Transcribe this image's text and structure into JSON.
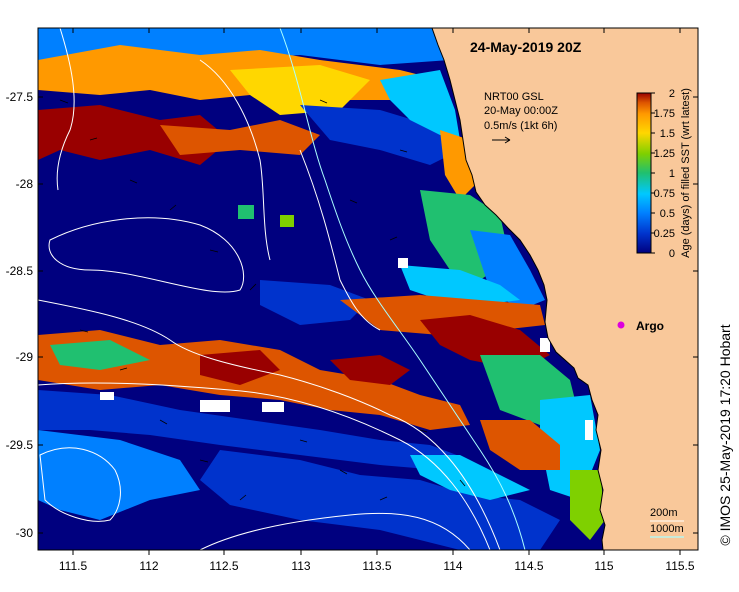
{
  "map": {
    "title": "24-May-2019 20Z",
    "credit": "© IMOS 25-May-2019 17:20 Hobart",
    "vector_label": {
      "line1": "NRT00 GSL",
      "line2": "20-May 00:00Z",
      "line3": "0.5m/s (1kt 6h)"
    },
    "argo_label": "Argo",
    "contour_legend": {
      "shallow": "200m",
      "deep": "1000m"
    },
    "colorbar": {
      "label": "Age (days) of filled SST (wrt latest)",
      "ticks": [
        "2",
        "1.75",
        "1.5",
        "1.25",
        "1",
        "0.75",
        "0.5",
        "0.25",
        "0"
      ],
      "colors": [
        "#00007f",
        "#0033cc",
        "#0080ff",
        "#00c8ff",
        "#20c070",
        "#7fd000",
        "#ffd700",
        "#ff9900",
        "#dd5500",
        "#990000"
      ]
    },
    "x_ticks": [
      "111.5",
      "112",
      "112.5",
      "113",
      "113.5",
      "114",
      "114.5",
      "115",
      "115.5"
    ],
    "y_ticks": [
      "-27.5",
      "-28",
      "-28.5",
      "-29",
      "-29.5",
      "-30"
    ],
    "colors": {
      "land": "#f9c89a",
      "ocean_deep": "#00007f",
      "contour": "#ffffff",
      "isobath_200": "#aaffff",
      "argo": "#dd00dd"
    }
  }
}
